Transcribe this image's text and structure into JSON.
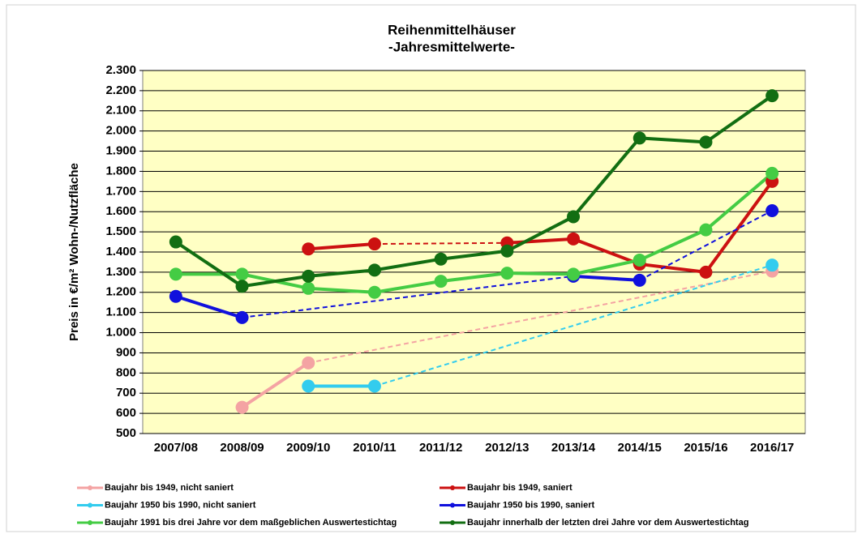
{
  "chart_data": {
    "type": "line",
    "title": "Reihenmittelhäuser",
    "subtitle": "-Jahresmittelwerte-",
    "y_label": "Preis in €/m² Wohn-/Nutzfläche",
    "categories": [
      "2007/08",
      "2008/09",
      "2009/10",
      "2010/11",
      "2011/12",
      "2012/13",
      "2013/14",
      "2014/15",
      "2015/16",
      "2016/17"
    ],
    "ylim": [
      500,
      2300
    ],
    "yticks": [
      {
        "value": 500,
        "label": "500"
      },
      {
        "value": 600,
        "label": "600"
      },
      {
        "value": 700,
        "label": "700"
      },
      {
        "value": 800,
        "label": "800"
      },
      {
        "value": 900,
        "label": "900"
      },
      {
        "value": 1000,
        "label": "1.000"
      },
      {
        "value": 1100,
        "label": "1.100"
      },
      {
        "value": 1200,
        "label": "1.200"
      },
      {
        "value": 1300,
        "label": "1.300"
      },
      {
        "value": 1400,
        "label": "1.400"
      },
      {
        "value": 1500,
        "label": "1.500"
      },
      {
        "value": 1600,
        "label": "1.600"
      },
      {
        "value": 1700,
        "label": "1.700"
      },
      {
        "value": 1800,
        "label": "1.800"
      },
      {
        "value": 1900,
        "label": "1.900"
      },
      {
        "value": 2000,
        "label": "2.000"
      },
      {
        "value": 2100,
        "label": "2.100"
      },
      {
        "value": 2200,
        "label": "2.200"
      },
      {
        "value": 2300,
        "label": "2.300"
      }
    ],
    "grid": true,
    "series": [
      {
        "name": "Baujahr bis 1949, nicht saniert",
        "color": "#f4a3a3",
        "values": [
          null,
          630,
          850,
          null,
          null,
          null,
          null,
          null,
          null,
          1305
        ]
      },
      {
        "name": "Baujahr bis 1949, saniert",
        "color": "#cc1111",
        "values": [
          null,
          null,
          1415,
          1440,
          null,
          1445,
          1465,
          1340,
          1300,
          1750
        ]
      },
      {
        "name": "Baujahr 1950 bis 1990, nicht saniert",
        "color": "#33ccee",
        "values": [
          null,
          null,
          735,
          735,
          null,
          null,
          null,
          null,
          null,
          1335
        ]
      },
      {
        "name": "Baujahr 1950 bis 1990, saniert",
        "color": "#1010dd",
        "values": [
          1180,
          1075,
          null,
          null,
          null,
          null,
          1280,
          1260,
          null,
          1605
        ]
      },
      {
        "name": "Baujahr 1991 bis drei Jahre vor dem maßgeblichen Auswertestichtag",
        "color": "#44cc44",
        "values": [
          1290,
          1290,
          1220,
          1200,
          1255,
          1295,
          1290,
          1360,
          1510,
          1790
        ]
      },
      {
        "name": "Baujahr innerhalb der letzten drei Jahre vor dem Auswertestichtag",
        "color": "#126e12",
        "values": [
          1450,
          1230,
          1280,
          1310,
          1365,
          1405,
          1575,
          1965,
          1945,
          2175
        ]
      }
    ]
  }
}
